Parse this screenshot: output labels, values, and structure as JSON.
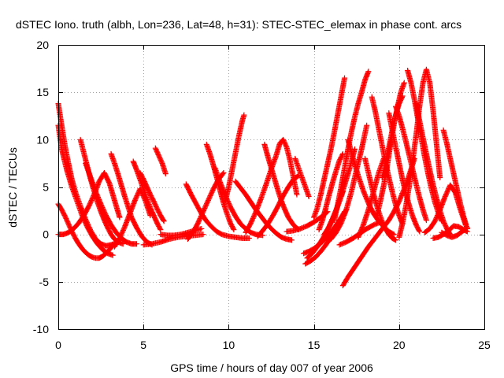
{
  "chart_data": {
    "type": "scatter",
    "title": "dSTEC Iono. truth (albh, Lon=236, Lat=48, h=31): STEC-STEC_elemax in phase cont. arcs",
    "xlabel": "GPS time / hours of day 007 of year 2006",
    "ylabel": "dSTEC  / TECUs",
    "xlim": [
      0,
      25
    ],
    "ylim": [
      -10,
      20
    ],
    "xticks": [
      0,
      5,
      10,
      15,
      20,
      25
    ],
    "yticks": [
      -10,
      -5,
      0,
      5,
      10,
      15,
      20
    ],
    "grid": true,
    "marker": "plus",
    "colors": {
      "series": "#ff0000",
      "grid": "#a0a0a0",
      "axes": "#000000"
    },
    "series": [
      {
        "x": [
          0.0,
          0.2,
          0.4,
          0.6,
          0.8,
          1.0,
          1.3,
          1.6,
          1.9,
          2.2,
          2.5,
          2.8,
          3.1,
          3.4
        ],
        "y": [
          13.8,
          11.5,
          9.3,
          7.5,
          5.8,
          4.5,
          3.0,
          1.6,
          0.4,
          -0.5,
          -1.0,
          -1.2,
          -1.1,
          -0.9
        ]
      },
      {
        "x": [
          0.0,
          0.2,
          0.5,
          0.8,
          1.1,
          1.4,
          1.7,
          2.0,
          2.3,
          2.6,
          2.9,
          3.2
        ],
        "y": [
          11.5,
          9.0,
          6.8,
          5.0,
          3.5,
          2.0,
          0.8,
          -0.2,
          -1.0,
          -1.6,
          -2.0,
          -2.2
        ]
      },
      {
        "x": [
          0.0,
          0.2,
          0.4,
          0.6,
          0.8,
          1.0,
          1.2,
          1.4,
          1.6,
          1.8,
          2.0,
          2.2,
          2.4,
          2.6,
          2.8,
          3.0,
          3.2
        ],
        "y": [
          3.2,
          2.6,
          1.9,
          1.1,
          0.3,
          -0.4,
          -1.0,
          -1.5,
          -1.9,
          -2.2,
          -2.4,
          -2.5,
          -2.5,
          -2.3,
          -2.0,
          -1.6,
          -1.2
        ]
      },
      {
        "x": [
          0.0,
          0.3,
          0.6,
          0.9,
          1.2,
          1.5,
          1.8,
          2.1,
          2.4,
          2.7,
          3.0,
          3.3,
          3.6
        ],
        "y": [
          0.0,
          0.0,
          0.2,
          0.6,
          1.2,
          2.0,
          3.0,
          4.2,
          5.6,
          6.5,
          5.4,
          3.6,
          1.8
        ]
      },
      {
        "x": [
          1.3,
          1.5,
          1.7,
          1.9,
          2.1,
          2.3,
          2.5,
          2.7,
          2.9,
          3.1,
          3.3,
          3.5,
          3.8
        ],
        "y": [
          10.0,
          8.6,
          7.2,
          5.8,
          4.6,
          3.4,
          2.4,
          1.5,
          0.7,
          0.0,
          -0.5,
          -0.8,
          -1.0
        ]
      },
      {
        "x": [
          1.6,
          1.9,
          2.2,
          2.5,
          2.8,
          3.1,
          3.4,
          3.7,
          4.0,
          4.3,
          4.6
        ],
        "y": [
          7.5,
          6.0,
          4.5,
          3.2,
          2.0,
          1.0,
          0.2,
          -0.4,
          -0.8,
          -1.0,
          -1.0
        ]
      },
      {
        "x": [
          3.1,
          3.3,
          3.5,
          3.7,
          3.9,
          4.1,
          4.3,
          4.6,
          4.9,
          5.2,
          5.5
        ],
        "y": [
          8.5,
          7.5,
          6.4,
          5.2,
          4.0,
          2.9,
          1.8,
          0.7,
          -0.2,
          -0.8,
          -1.1
        ]
      },
      {
        "x": [
          3.3,
          3.6,
          3.9,
          4.2,
          4.5,
          4.8,
          5.1,
          5.4
        ],
        "y": [
          -1.3,
          -0.4,
          0.8,
          2.2,
          3.6,
          4.8,
          3.6,
          2.0
        ]
      },
      {
        "x": [
          4.4,
          4.6,
          4.8,
          5.0,
          5.2,
          5.4,
          5.6,
          5.8,
          6.0
        ],
        "y": [
          7.7,
          6.8,
          5.8,
          4.8,
          3.8,
          2.8,
          2.0,
          1.2,
          0.5
        ]
      },
      {
        "x": [
          4.8,
          5.0,
          5.2,
          5.4,
          5.6,
          5.8,
          6.0,
          6.2
        ],
        "y": [
          6.5,
          5.8,
          5.0,
          4.2,
          3.5,
          2.7,
          2.0,
          1.4
        ]
      },
      {
        "x": [
          5.0,
          5.5,
          6.0,
          6.5,
          7.0,
          7.5,
          8.0,
          8.5
        ],
        "y": [
          -1.1,
          -1.0,
          -0.8,
          -0.5,
          -0.3,
          -0.2,
          -0.1,
          0.0
        ]
      },
      {
        "x": [
          5.7,
          5.9,
          6.1,
          6.3
        ],
        "y": [
          9.1,
          8.3,
          7.5,
          6.4
        ]
      },
      {
        "x": [
          6.0,
          6.4,
          6.8,
          7.2,
          7.6,
          8.0,
          8.4
        ],
        "y": [
          0.0,
          -0.1,
          -0.1,
          0.0,
          0.2,
          0.4,
          0.6
        ]
      },
      {
        "x": [
          7.5,
          7.8,
          8.1,
          8.4,
          8.7,
          9.0,
          9.3,
          9.6,
          10.0,
          10.4,
          10.8,
          11.2
        ],
        "y": [
          5.3,
          4.2,
          3.2,
          2.2,
          1.4,
          0.8,
          0.3,
          0.0,
          -0.2,
          -0.3,
          -0.4,
          -0.4
        ]
      },
      {
        "x": [
          7.6,
          7.9,
          8.2,
          8.5,
          8.8,
          9.1,
          9.4,
          9.7
        ],
        "y": [
          -0.5,
          0.2,
          1.2,
          2.4,
          3.6,
          4.8,
          5.8,
          6.5
        ]
      },
      {
        "x": [
          8.7,
          8.9,
          9.1,
          9.3,
          9.5,
          9.7,
          9.9,
          10.1,
          10.3
        ],
        "y": [
          9.5,
          8.5,
          7.3,
          6.0,
          4.6,
          3.3,
          2.2,
          1.2,
          0.5
        ]
      },
      {
        "x": [
          9.2,
          9.5,
          9.8,
          10.1,
          10.4,
          10.7,
          11.0,
          11.3,
          11.6,
          12.0
        ],
        "y": [
          7.0,
          5.5,
          4.1,
          2.9,
          1.9,
          1.1,
          0.6,
          0.2,
          0.0,
          -0.1
        ]
      },
      {
        "x": [
          9.8,
          10.0,
          10.2,
          10.4,
          10.6,
          10.8,
          10.9
        ],
        "y": [
          3.5,
          5.0,
          6.8,
          8.6,
          10.4,
          12.0,
          12.6
        ]
      },
      {
        "x": [
          10.4,
          10.7,
          11.0,
          11.3,
          11.6,
          11.9,
          12.2,
          12.5,
          12.8,
          13.1,
          13.4,
          13.7
        ],
        "y": [
          5.6,
          4.9,
          4.2,
          3.4,
          2.6,
          1.9,
          1.2,
          0.6,
          0.1,
          -0.3,
          -0.5,
          -0.6
        ]
      },
      {
        "x": [
          11.0,
          11.3,
          11.6,
          11.9,
          12.2,
          12.5,
          12.8,
          13.0,
          13.2,
          13.4,
          13.6,
          13.8,
          14.0
        ],
        "y": [
          0.2,
          1.2,
          2.4,
          3.8,
          5.3,
          6.9,
          8.4,
          9.6,
          10.0,
          9.2,
          7.8,
          6.0,
          4.2
        ]
      },
      {
        "x": [
          11.7,
          12.0,
          12.3,
          12.6,
          12.9,
          13.2,
          13.5,
          13.8,
          14.1
        ],
        "y": [
          -0.2,
          0.4,
          1.1,
          2.0,
          3.0,
          4.1,
          5.0,
          5.8,
          6.2
        ]
      },
      {
        "x": [
          12.1,
          12.3,
          12.5,
          12.7,
          12.9,
          13.1,
          13.3,
          13.5,
          13.8,
          14.1
        ],
        "y": [
          9.5,
          8.2,
          7.0,
          5.8,
          4.6,
          3.5,
          2.6,
          1.8,
          1.0,
          0.5
        ]
      },
      {
        "x": [
          13.4,
          13.8,
          14.2,
          14.6,
          15.0,
          15.4,
          15.8
        ],
        "y": [
          0.3,
          0.4,
          0.6,
          0.9,
          1.3,
          1.8,
          2.4
        ]
      },
      {
        "x": [
          13.9,
          14.1,
          14.3,
          14.5,
          14.7
        ],
        "y": [
          8.0,
          7.0,
          6.0,
          5.0,
          4.0
        ]
      },
      {
        "x": [
          14.4,
          14.7,
          15.0,
          15.3,
          15.6,
          15.9,
          16.2,
          16.5,
          16.8
        ],
        "y": [
          -2.0,
          -1.8,
          -1.5,
          -1.1,
          -0.6,
          0.0,
          0.7,
          1.5,
          2.4
        ]
      },
      {
        "x": [
          14.5,
          14.8,
          15.1,
          15.4,
          15.7,
          16.0,
          16.3,
          16.6,
          16.9
        ],
        "y": [
          -3.1,
          -2.8,
          -2.4,
          -1.8,
          -1.1,
          -0.3,
          0.6,
          1.6,
          2.6
        ]
      },
      {
        "x": [
          14.6,
          14.9,
          15.2,
          15.5,
          15.8,
          16.1,
          16.4,
          16.7
        ],
        "y": [
          -2.5,
          -2.0,
          -1.3,
          -0.5,
          0.5,
          1.7,
          3.0,
          4.5
        ]
      },
      {
        "x": [
          15.0,
          15.2,
          15.4,
          15.6,
          15.8,
          16.0,
          16.2,
          16.4,
          16.6,
          16.8
        ],
        "y": [
          1.8,
          2.8,
          4.2,
          5.8,
          7.4,
          9.0,
          10.8,
          12.7,
          14.6,
          16.5
        ]
      },
      {
        "x": [
          15.3,
          15.5,
          15.7,
          15.9,
          16.1,
          16.3,
          16.5,
          16.7
        ],
        "y": [
          0.5,
          1.5,
          2.8,
          4.2,
          5.5,
          6.7,
          7.8,
          8.5
        ]
      },
      {
        "x": [
          15.6,
          15.9,
          16.2,
          16.5,
          16.8,
          17.1,
          17.4
        ],
        "y": [
          0.0,
          0.8,
          2.0,
          3.5,
          5.2,
          7.0,
          9.0
        ]
      },
      {
        "x": [
          16.0,
          16.3,
          16.6,
          16.9,
          17.2,
          17.5,
          17.8,
          18.1
        ],
        "y": [
          -0.5,
          0.2,
          1.2,
          2.6,
          4.5,
          6.8,
          9.0,
          11.5
        ]
      },
      {
        "x": [
          16.2,
          16.4,
          16.6,
          16.8,
          17.0,
          17.2,
          17.4,
          17.6,
          17.8,
          18.0,
          18.2
        ],
        "y": [
          1.5,
          3.2,
          5.0,
          7.0,
          9.0,
          10.8,
          12.4,
          13.8,
          15.0,
          16.3,
          17.2
        ]
      },
      {
        "x": [
          16.7,
          17.0,
          17.3,
          17.6,
          17.9,
          18.2,
          18.5,
          18.8,
          19.1,
          19.4,
          19.7,
          20.0,
          20.3,
          20.6,
          20.9
        ],
        "y": [
          -5.4,
          -4.5,
          -3.7,
          -2.9,
          -2.1,
          -1.3,
          -0.6,
          0.1,
          0.8,
          1.5,
          2.4,
          3.5,
          4.8,
          6.3,
          8.0
        ]
      },
      {
        "x": [
          16.5,
          16.9,
          17.3,
          17.7,
          18.1,
          18.5,
          18.9
        ],
        "y": [
          -1.1,
          -0.8,
          -0.4,
          0.1,
          0.6,
          1.0,
          1.3
        ]
      },
      {
        "x": [
          17.0,
          17.3,
          17.6,
          17.9,
          18.2,
          18.5,
          18.8,
          19.1,
          19.4,
          19.7
        ],
        "y": [
          10.0,
          8.0,
          6.2,
          4.6,
          3.3,
          2.2,
          1.4,
          0.8,
          0.3,
          0.0
        ]
      },
      {
        "x": [
          17.6,
          17.9,
          18.2,
          18.5,
          18.8,
          19.1
        ],
        "y": [
          -0.3,
          1.0,
          2.6,
          4.5,
          6.5,
          8.0
        ]
      },
      {
        "x": [
          18.0,
          18.2,
          18.4,
          18.6,
          18.8,
          19.0,
          19.2,
          19.4,
          19.6,
          19.8
        ],
        "y": [
          8.0,
          6.5,
          5.0,
          3.6,
          2.4,
          1.4,
          0.6,
          0.0,
          -0.4,
          -0.6
        ]
      },
      {
        "x": [
          18.4,
          18.6,
          18.8,
          19.0,
          19.2,
          19.4,
          19.6,
          19.8,
          20.0,
          20.2
        ],
        "y": [
          14.5,
          13.0,
          11.2,
          9.4,
          7.6,
          6.0,
          4.5,
          3.1,
          2.0,
          1.1
        ]
      },
      {
        "x": [
          18.7,
          18.9,
          19.1,
          19.3,
          19.5,
          19.7,
          19.9,
          20.1,
          20.3
        ],
        "y": [
          2.0,
          3.5,
          5.2,
          7.2,
          9.5,
          11.6,
          13.4,
          15.0,
          16.0
        ]
      },
      {
        "x": [
          19.0,
          19.2,
          19.4,
          19.6,
          19.8,
          20.0,
          20.2
        ],
        "y": [
          6.0,
          7.5,
          9.2,
          11.0,
          12.6,
          13.8,
          14.6
        ]
      },
      {
        "x": [
          19.4,
          19.6,
          19.8,
          20.0,
          20.2,
          20.4,
          20.6,
          20.8,
          21.0,
          21.2
        ],
        "y": [
          12.8,
          11.0,
          9.2,
          7.5,
          5.8,
          4.3,
          3.0,
          1.9,
          1.0,
          0.3
        ]
      },
      {
        "x": [
          19.8,
          20.0,
          20.2,
          20.4,
          20.6,
          20.8,
          21.0,
          21.2,
          21.4,
          21.6
        ],
        "y": [
          13.5,
          12.5,
          11.2,
          9.8,
          8.3,
          6.8,
          5.3,
          3.9,
          2.6,
          1.5
        ]
      },
      {
        "x": [
          20.0,
          20.2,
          20.4,
          20.6,
          20.8,
          21.0,
          21.2,
          21.4,
          21.6,
          21.8,
          22.0,
          22.2,
          22.4
        ],
        "y": [
          -0.3,
          1.2,
          3.0,
          5.2,
          7.8,
          10.5,
          13.5,
          16.0,
          17.4,
          16.0,
          13.0,
          9.5,
          6.0
        ]
      },
      {
        "x": [
          20.5,
          20.7,
          20.9,
          21.1,
          21.3,
          21.5,
          21.7,
          21.9,
          22.1,
          22.3,
          22.5
        ],
        "y": [
          17.3,
          16.0,
          14.2,
          12.2,
          10.2,
          8.2,
          6.4,
          4.8,
          3.4,
          2.3,
          1.4
        ]
      },
      {
        "x": [
          21.0,
          21.2,
          21.4,
          21.6,
          21.8,
          22.0,
          22.2,
          22.4,
          22.6,
          22.8,
          23.0
        ],
        "y": [
          13.8,
          12.0,
          10.2,
          8.5,
          6.8,
          5.2,
          3.8,
          2.5,
          1.4,
          0.6,
          0.0
        ]
      },
      {
        "x": [
          21.5,
          21.8,
          22.1,
          22.4,
          22.7,
          23.0,
          23.3,
          23.6,
          23.9
        ],
        "y": [
          0.2,
          0.6,
          1.4,
          2.6,
          4.0,
          5.2,
          4.4,
          2.6,
          1.0
        ]
      },
      {
        "x": [
          22.0,
          22.3,
          22.6,
          22.9,
          23.2,
          23.5,
          23.8,
          24.0
        ],
        "y": [
          -0.4,
          -0.3,
          0.0,
          0.4,
          0.9,
          0.8,
          0.5,
          0.3
        ]
      },
      {
        "x": [
          22.6,
          22.8,
          23.0,
          23.2,
          23.4,
          23.6,
          23.8,
          24.0
        ],
        "y": [
          11.0,
          9.6,
          8.0,
          6.4,
          4.8,
          3.2,
          1.8,
          0.6
        ]
      },
      {
        "x": [
          22.5,
          22.8,
          23.1,
          23.4,
          23.7,
          24.0
        ],
        "y": [
          0.2,
          -0.1,
          -0.3,
          -0.1,
          0.3,
          0.7
        ]
      }
    ]
  }
}
